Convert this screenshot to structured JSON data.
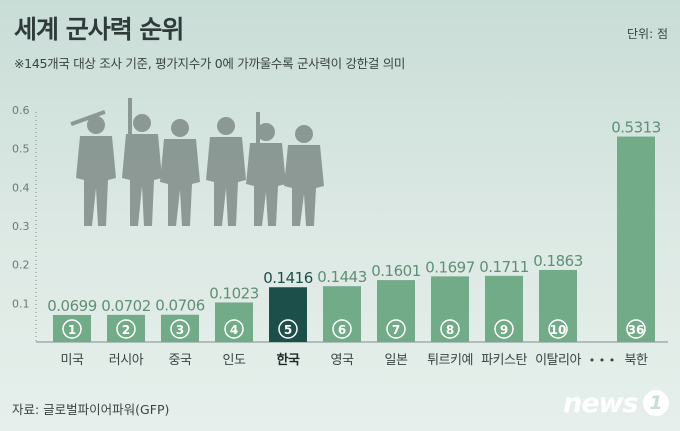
{
  "header": {
    "title": "세계 군사력 순위",
    "unit": "단위: 점",
    "subtitle": "※145개국 대상 조사 기준, 평가지수가 0에 가까울수록 군사력이 강한걸 의미"
  },
  "footer": {
    "source": "자료: 글로벌파이어파워(GFP)",
    "logo_text": "news",
    "logo_badge": "1"
  },
  "colors": {
    "bar": "#71ab88",
    "highlight_bar": "#1d4f4a",
    "label_text": "#5f8f77",
    "highlight_label_text": "#1d4f4a",
    "axis": "#7a8f89",
    "soldier": "#7f8c87"
  },
  "chart_data": {
    "type": "bar",
    "categories": [
      "미국",
      "러시아",
      "중국",
      "인도",
      "한국",
      "영국",
      "일본",
      "튀르키예",
      "파키스탄",
      "이탈리아",
      "북한"
    ],
    "ranks": [
      "1",
      "2",
      "3",
      "4",
      "5",
      "6",
      "7",
      "8",
      "9",
      "10",
      "36"
    ],
    "values": [
      0.0699,
      0.0702,
      0.0706,
      0.1023,
      0.1416,
      0.1443,
      0.1601,
      0.1697,
      0.1711,
      0.1863,
      0.5313
    ],
    "value_labels": [
      "0.0699",
      "0.0702",
      "0.0706",
      "0.1023",
      "0.1416",
      "0.1443",
      "0.1601",
      "0.1697",
      "0.1711",
      "0.1863",
      "0.5313"
    ],
    "highlight": "한국",
    "gap_marker": "• • •",
    "yticks": [
      "0.1",
      "0.2",
      "0.3",
      "0.4",
      "0.5",
      "0.6"
    ],
    "ylim": [
      0,
      0.6
    ],
    "title": "세계 군사력 순위",
    "xlabel": "",
    "ylabel": "",
    "grid": false
  }
}
